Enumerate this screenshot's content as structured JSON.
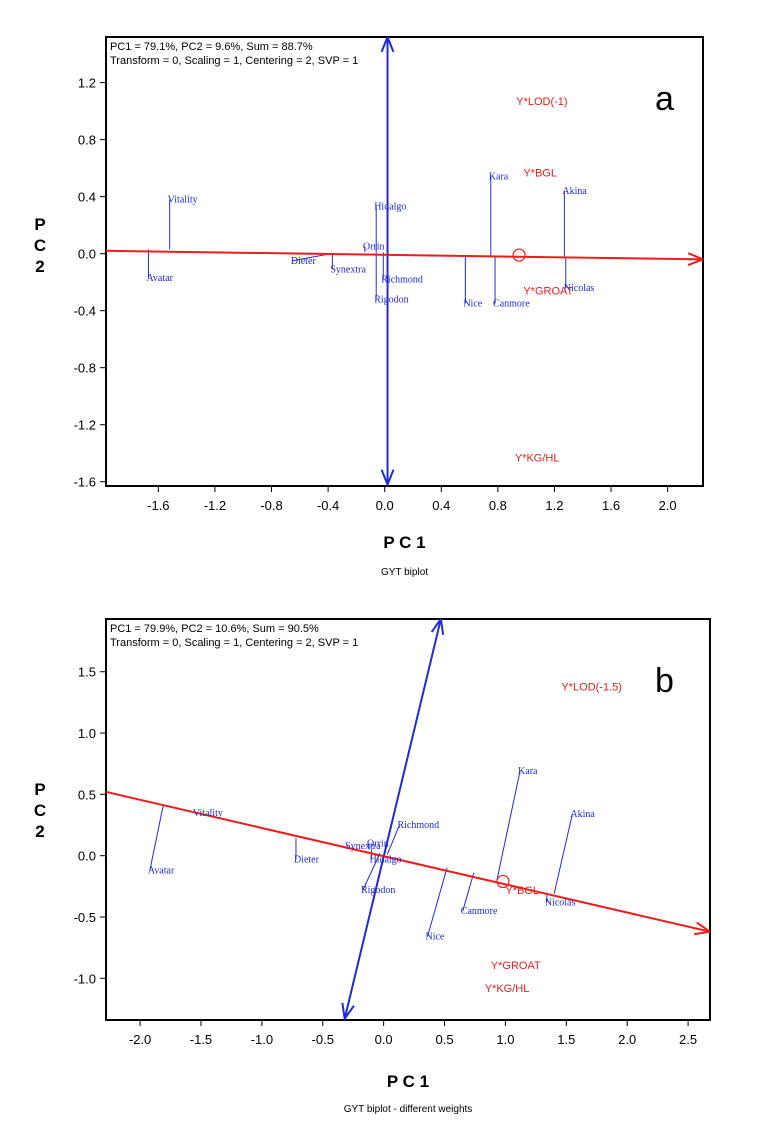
{
  "chart_data": [
    {
      "type": "scatter",
      "panel_label": "a",
      "title": "GYT biplot",
      "xlabel": "P C 1",
      "ylabel": "P\nC\n2",
      "stats_line1": "PC1 = 79.1%, PC2 = 9.6%, Sum = 88.7%",
      "stats_line2": "Transform = 0, Scaling = 1, Centering = 2, SVP = 1",
      "xlim": [
        -1.97,
        2.25
      ],
      "ylim": [
        -1.63,
        1.52
      ],
      "xticks": [
        "-1.6",
        "-1.2",
        "-0.8",
        "-0.4",
        "0.0",
        "0.4",
        "0.8",
        "1.2",
        "1.6",
        "2.0"
      ],
      "xtick_values": [
        -1.6,
        -1.2,
        -0.8,
        -0.4,
        0.0,
        0.4,
        0.8,
        1.2,
        1.6,
        2.0
      ],
      "yticks": [
        "1.2",
        "0.8",
        "0.4",
        "0.0",
        "-0.4",
        "-0.8",
        "-1.2",
        "-1.6"
      ],
      "ytick_values": [
        1.2,
        0.8,
        0.4,
        0.0,
        -0.4,
        -0.8,
        -1.2,
        -1.6
      ],
      "aec_abscissa": {
        "from": [
          -1.97,
          0.02
        ],
        "to": [
          2.25,
          -0.04
        ]
      },
      "aec_ordinate": {
        "from": [
          0.02,
          -1.62
        ],
        "to": [
          0.02,
          1.52
        ]
      },
      "ideal_point": [
        0.95,
        -0.01
      ],
      "genotypes": [
        {
          "label": "Vitality",
          "x": -1.52,
          "y": 0.38,
          "foot": [
            -1.52,
            0.03
          ]
        },
        {
          "label": "Avatar",
          "x": -1.67,
          "y": -0.17,
          "foot": [
            -1.67,
            0.03
          ]
        },
        {
          "label": "Dieter",
          "x": -0.65,
          "y": -0.05,
          "foot": [
            -0.38,
            0.0
          ]
        },
        {
          "label": "Synextra",
          "x": -0.37,
          "y": -0.11,
          "foot": [
            -0.37,
            0.0
          ]
        },
        {
          "label": "Orrin",
          "x": -0.14,
          "y": 0.05,
          "foot": [
            -0.14,
            0.01
          ]
        },
        {
          "label": "Hidalgo",
          "x": -0.06,
          "y": 0.33,
          "foot": [
            -0.06,
            0.01
          ]
        },
        {
          "label": "Richmond",
          "x": -0.01,
          "y": -0.18,
          "foot": [
            -0.01,
            0.01
          ]
        },
        {
          "label": "Rigodon",
          "x": -0.06,
          "y": -0.32,
          "foot": [
            -0.06,
            0.01
          ]
        },
        {
          "label": "Kara",
          "x": 0.75,
          "y": 0.54,
          "foot": [
            0.75,
            -0.02
          ]
        },
        {
          "label": "Akina",
          "x": 1.27,
          "y": 0.44,
          "foot": [
            1.27,
            -0.03
          ]
        },
        {
          "label": "Nicolas",
          "x": 1.28,
          "y": -0.24,
          "foot": [
            1.28,
            -0.03
          ]
        },
        {
          "label": "Nice",
          "x": 0.57,
          "y": -0.35,
          "foot": [
            0.57,
            -0.02
          ]
        },
        {
          "label": "Canmore",
          "x": 0.78,
          "y": -0.35,
          "foot": [
            0.78,
            -0.02
          ]
        }
      ],
      "traits": [
        {
          "label": "Y*LOD(-1)",
          "x": 0.93,
          "y": 1.07
        },
        {
          "label": "Y*BGL",
          "x": 0.98,
          "y": 0.57
        },
        {
          "label": "Y*GROAT",
          "x": 0.98,
          "y": -0.26
        },
        {
          "label": "Y*KG/HL",
          "x": 0.92,
          "y": -1.43
        }
      ]
    },
    {
      "type": "scatter",
      "panel_label": "b",
      "title": "GYT biplot - different weights",
      "xlabel": "P C 1",
      "ylabel": "P\nC\n2",
      "stats_line1": "PC1 = 79.9%, PC2 = 10.6%, Sum = 90.5%",
      "stats_line2": "Transform = 0, Scaling = 1, Centering = 2, SVP = 1",
      "xlim": [
        -2.28,
        2.68
      ],
      "ylim": [
        -1.34,
        1.93
      ],
      "xticks": [
        "-2.0",
        "-1.5",
        "-1.0",
        "-0.5",
        "0.0",
        "0.5",
        "1.0",
        "1.5",
        "2.0",
        "2.5"
      ],
      "xtick_values": [
        -2.0,
        -1.5,
        -1.0,
        -0.5,
        0.0,
        0.5,
        1.0,
        1.5,
        2.0,
        2.5
      ],
      "yticks": [
        "1.5",
        "1.0",
        "0.5",
        "0.0",
        "-0.5",
        "-1.0"
      ],
      "ytick_values": [
        1.5,
        1.0,
        0.5,
        0.0,
        -0.5,
        -1.0
      ],
      "aec_abscissa": {
        "from": [
          -2.28,
          0.52
        ],
        "to": [
          2.68,
          -0.62
        ]
      },
      "aec_ordinate": {
        "from": [
          -0.32,
          -1.33
        ],
        "to": [
          0.47,
          1.93
        ]
      },
      "ideal_point": [
        0.98,
        -0.21
      ],
      "genotypes": [
        {
          "label": "Vitality",
          "x": -1.55,
          "y": 0.35,
          "foot": [
            -1.55,
            0.35
          ]
        },
        {
          "label": "Avatar",
          "x": -1.92,
          "y": -0.12,
          "foot": [
            -1.81,
            0.41
          ]
        },
        {
          "label": "Dieter",
          "x": -0.72,
          "y": -0.03,
          "foot": [
            -0.72,
            0.14
          ]
        },
        {
          "label": "Synextra",
          "x": -0.3,
          "y": 0.08,
          "foot": [
            -0.3,
            0.07
          ]
        },
        {
          "label": "Orrin",
          "x": -0.12,
          "y": 0.1,
          "foot": [
            -0.12,
            0.05
          ]
        },
        {
          "label": "Hidalgo",
          "x": -0.1,
          "y": -0.03,
          "foot": [
            -0.1,
            0.05
          ]
        },
        {
          "label": "Richmond",
          "x": 0.13,
          "y": 0.25,
          "foot": [
            0.03,
            0.01
          ]
        },
        {
          "label": "Rigodon",
          "x": -0.17,
          "y": -0.28,
          "foot": [
            -0.03,
            0.02
          ]
        },
        {
          "label": "Kara",
          "x": 1.12,
          "y": 0.69,
          "foot": [
            0.93,
            -0.2
          ]
        },
        {
          "label": "Akina",
          "x": 1.55,
          "y": 0.34,
          "foot": [
            1.4,
            -0.31
          ]
        },
        {
          "label": "Nicolas",
          "x": 1.34,
          "y": -0.38,
          "foot": [
            1.34,
            -0.3
          ]
        },
        {
          "label": "Nice",
          "x": 0.36,
          "y": -0.66,
          "foot": [
            0.52,
            -0.1
          ]
        },
        {
          "label": "Canmore",
          "x": 0.65,
          "y": -0.45,
          "foot": [
            0.74,
            -0.14
          ]
        }
      ],
      "traits": [
        {
          "label": "Y*LOD(-1.5)",
          "x": 1.46,
          "y": 1.38
        },
        {
          "label": "Y*BGL",
          "x": 1.0,
          "y": -0.28
        },
        {
          "label": "Y*GROAT",
          "x": 0.88,
          "y": -0.89
        },
        {
          "label": "Y*KG/HL",
          "x": 0.83,
          "y": -1.08
        }
      ]
    }
  ]
}
